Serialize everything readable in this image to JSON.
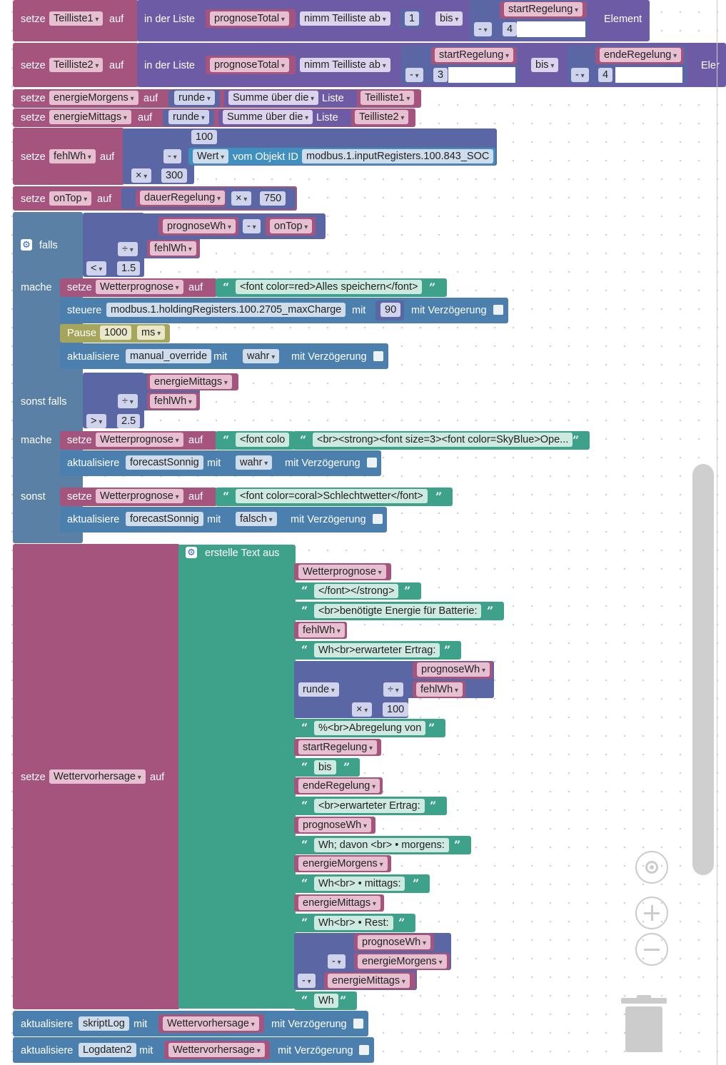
{
  "w": {
    "setze": "setze",
    "auf": "auf",
    "in_der_liste": "in der Liste",
    "nimm": "nimm Teilliste ab",
    "bis": "bis",
    "element": "Element",
    "elem_cut": "Eler",
    "runde": "runde",
    "summe": "Summe über die",
    "liste": "Liste",
    "wert": "Wert",
    "vom_objekt": "vom Objekt ID",
    "minus": "-",
    "mal": "×",
    "div": "÷",
    "lt": "<",
    "gt": ">",
    "falls": "falls",
    "mache": "mache",
    "sonst_falls": "sonst falls",
    "sonst": "sonst",
    "steuere": "steuere",
    "mit": "mit",
    "mit_verz": "mit Verzögerung",
    "pause": "Pause",
    "ms": "ms",
    "aktualisiere": "aktualisiere",
    "erstelle": "erstelle Text aus",
    "wahr": "wahr",
    "falsch": "falsch"
  },
  "vars": {
    "teilliste1": "Teilliste1",
    "teilliste2": "Teilliste2",
    "prognoseTotal": "prognoseTotal",
    "startRegelung": "startRegelung",
    "endeRegelung": "endeRegelung",
    "energieMorgens": "energieMorgens",
    "energieMittags": "energieMittags",
    "fehlWh": "fehlWh",
    "onTop": "onTop",
    "dauerRegelung": "dauerRegelung",
    "prognoseWh": "prognoseWh",
    "wetterprognose": "Wetterprognose",
    "wettervorhersage": "Wettervorhersage"
  },
  "ids": {
    "soc": "modbus.1.inputRegisters.100.843_SOC",
    "maxcharge": "modbus.1.holdingRegisters.100.2705_maxCharge",
    "manual": "manual_override",
    "sonnig": "forecastSonnig",
    "skriptlog": "skriptLog",
    "logdaten2": "Logdaten2"
  },
  "nums": {
    "n1": "1",
    "n4": "4",
    "n3": "3",
    "n100": "100",
    "n300": "300",
    "n750": "750",
    "n15": "1.5",
    "n90": "90",
    "n1000": "1000",
    "n25": "2.5"
  },
  "strings": {
    "alles": "<font color=red>Alles speichern</font>",
    "fontcolo": "<font colo",
    "skyblue": "<br><strong><font size=3><font color=SkyBlue>Ope...",
    "schlecht": "<font color=coral>Schlechtwetter</font>",
    "s1": "</font></strong>",
    "s2": "<br>benötigte Energie für Batterie:",
    "s3": "Wh<br>erwarteter Ertrag:",
    "s4": "%<br>Abregelung von",
    "s5": "bis",
    "s6": "<br>erwarteter Ertrag:",
    "s7": "Wh; davon <br>  • morgens:",
    "s8": "Wh<br>  • mittags:",
    "s9": "Wh<br>  • Rest:",
    "s10": "Wh"
  },
  "icons": [
    "gear-icon",
    "target-icon",
    "zoom-in-icon",
    "zoom-out-icon",
    "trash-icon"
  ]
}
